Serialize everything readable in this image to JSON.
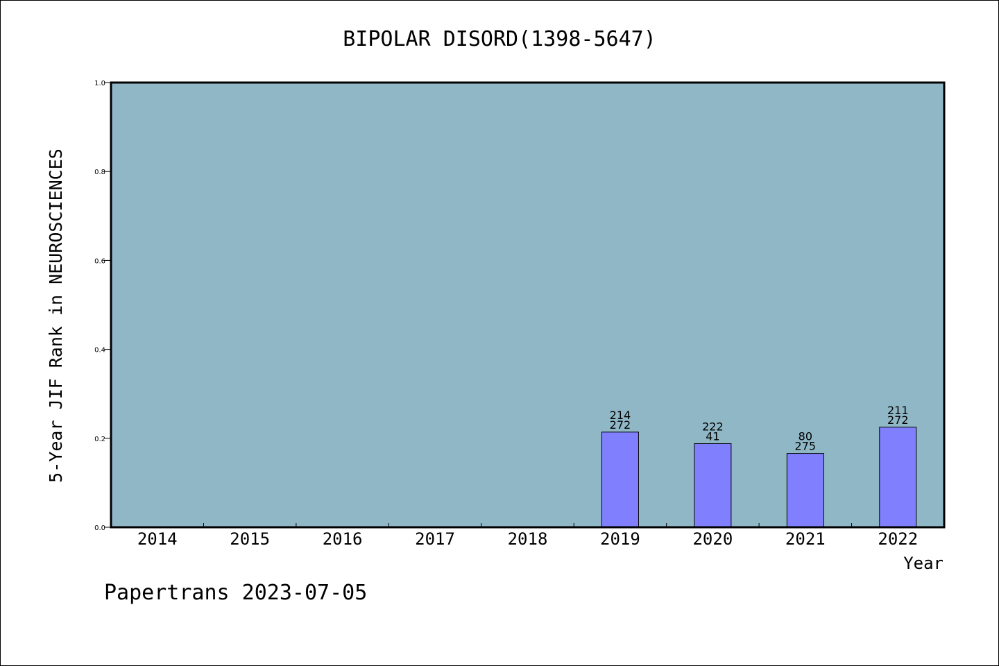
{
  "chart_data": {
    "type": "bar",
    "title": "BIPOLAR DISORD(1398-5647)",
    "xlabel": "Year",
    "ylabel": "5-Year JIF Rank in NEUROSCIENCES",
    "categories": [
      "2014",
      "2015",
      "2016",
      "2017",
      "2018",
      "2019",
      "2020",
      "2021",
      "2022"
    ],
    "values": [
      null,
      null,
      null,
      null,
      null,
      0.214,
      0.188,
      0.166,
      0.225
    ],
    "labels_top": [
      "",
      "",
      "",
      "",
      "",
      "214",
      "222",
      "80",
      "211"
    ],
    "labels_bottom": [
      "",
      "",
      "",
      "",
      "",
      "272",
      "41",
      "275",
      "272"
    ],
    "ylim": [
      0,
      1.0
    ],
    "yticks": [
      "0.0",
      "0.2",
      "0.4",
      "0.6",
      "0.8",
      "1.0"
    ],
    "colors": {
      "plot_background": "#8fb7c5",
      "bar": "#8080ff"
    },
    "grid": false,
    "legend": "none"
  },
  "footer": "Papertrans 2023-07-05"
}
